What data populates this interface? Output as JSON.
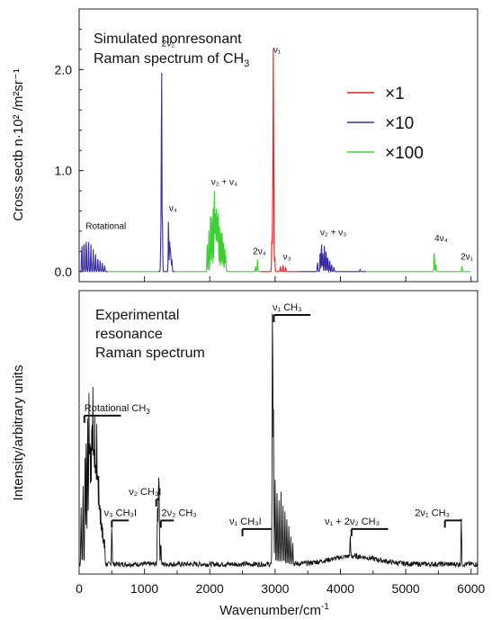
{
  "colors": {
    "x1": "#e0201e",
    "x10": "#3a2ea0",
    "x100": "#3fcf35",
    "exp": "#111111"
  },
  "x_axis": {
    "label": "Wavenumber/cm",
    "label_sup": "-1",
    "ticks": [
      "0",
      "1000",
      "2000",
      "3000",
      "4000",
      "5000",
      "6000"
    ],
    "tick_values": [
      0,
      1000,
      2000,
      3000,
      4000,
      5000,
      6000
    ],
    "range": [
      0,
      6100
    ]
  },
  "chart_data": [
    {
      "type": "line",
      "panel": "top",
      "title_lines": [
        "Simulated nonresonant",
        "Raman spectrum of CH"
      ],
      "title_sub": "3",
      "ylabel": "Cross sectb n·10² /m²sr⁻¹",
      "ylim": [
        -0.1,
        2.6
      ],
      "y_ticks": [
        "0.0",
        "1.0",
        "2.0"
      ],
      "y_tick_values": [
        0.0,
        1.0,
        2.0
      ],
      "legend": [
        {
          "label": "×1",
          "color": "#e0201e"
        },
        {
          "label": "×10",
          "color": "#3a2ea0"
        },
        {
          "label": "×100",
          "color": "#3fcf35"
        }
      ],
      "series": [
        {
          "color": "#3a2ea0",
          "range": [
            0,
            440
          ],
          "peaks": [
            [
              40,
              0.28
            ],
            [
              75,
              0.34
            ],
            [
              110,
              0.33
            ],
            [
              145,
              0.3
            ],
            [
              180,
              0.27
            ],
            [
              215,
              0.23
            ],
            [
              250,
              0.19
            ],
            [
              285,
              0.15
            ],
            [
              320,
              0.12
            ],
            [
              355,
              0.09
            ],
            [
              390,
              0.06
            ]
          ]
        },
        {
          "color": "#3fcf35",
          "range": [
            440,
            1210
          ],
          "peaks": []
        },
        {
          "color": "#3a2ea0",
          "range": [
            1210,
            1470
          ],
          "peaks": [
            [
              1262,
              2.18
            ],
            [
              1250,
              0.35
            ],
            [
              1275,
              0.45
            ],
            [
              1368,
              0.55
            ],
            [
              1385,
              0.3
            ],
            [
              1395,
              0.2
            ],
            [
              1405,
              0.15
            ],
            [
              1420,
              0.12
            ]
          ]
        },
        {
          "color": "#3fcf35",
          "range": [
            1470,
            2780
          ],
          "peaks": [
            [
              1960,
              0.3
            ],
            [
              1985,
              0.42
            ],
            [
              2010,
              0.55
            ],
            [
              2030,
              0.6
            ],
            [
              2050,
              0.7
            ],
            [
              2070,
              0.8
            ],
            [
              2085,
              0.72
            ],
            [
              2100,
              0.62
            ],
            [
              2115,
              0.68
            ],
            [
              2130,
              0.58
            ],
            [
              2150,
              0.5
            ],
            [
              2170,
              0.44
            ],
            [
              2190,
              0.38
            ],
            [
              2210,
              0.32
            ],
            [
              2230,
              0.25
            ],
            [
              2245,
              0.16
            ],
            [
              2730,
              0.12
            ],
            [
              2700,
              0.05
            ]
          ]
        },
        {
          "color": "#e0201e",
          "range": [
            2780,
            3020
          ],
          "peaks": [
            [
              2950,
              0.34
            ],
            [
              2963,
              0.55
            ],
            [
              2972,
              2.08
            ],
            [
              2980,
              0.4
            ],
            [
              2995,
              0.15
            ]
          ]
        },
        {
          "color": "#e0201e",
          "range": [
            3020,
            3340
          ],
          "peaks": [
            [
              3080,
              0.05
            ],
            [
              3120,
              0.07
            ],
            [
              3160,
              0.05
            ]
          ]
        },
        {
          "color": "#3a2ea0",
          "range": [
            3340,
            4400
          ],
          "peaks": [
            [
              3650,
              0.1
            ],
            [
              3690,
              0.2
            ],
            [
              3710,
              0.3
            ],
            [
              3730,
              0.18
            ],
            [
              3755,
              0.26
            ],
            [
              3780,
              0.22
            ],
            [
              3805,
              0.17
            ],
            [
              3835,
              0.13
            ],
            [
              3865,
              0.08
            ],
            [
              3900,
              0.05
            ],
            [
              4300,
              0.02
            ]
          ]
        },
        {
          "color": "#3fcf35",
          "range": [
            4400,
            6000
          ],
          "peaks": [
            [
              5435,
              0.22
            ],
            [
              5460,
              0.08
            ],
            [
              5860,
              0.06
            ]
          ]
        }
      ],
      "annotations": [
        {
          "text": "Rotational",
          "x": 100,
          "y": 0.42
        },
        {
          "text": "2ν₂",
          "x": 1262,
          "y": 2.23
        },
        {
          "text": "ν₄",
          "x": 1375,
          "y": 0.6
        },
        {
          "text": "ν₂ + ν₄",
          "x": 2020,
          "y": 0.86
        },
        {
          "text": "2ν₄",
          "x": 2660,
          "y": 0.17
        },
        {
          "text": "ν₃",
          "x": 3120,
          "y": 0.12
        },
        {
          "text": "ν₂ + ν₃",
          "x": 3690,
          "y": 0.36
        },
        {
          "text": "ν₁",
          "x": 2972,
          "y": 2.17
        },
        {
          "text": "4ν₄",
          "x": 5440,
          "y": 0.3
        },
        {
          "text": "2ν₁",
          "x": 5840,
          "y": 0.12
        }
      ]
    },
    {
      "type": "line",
      "panel": "bottom",
      "title_lines": [
        "Experimental",
        "resonance",
        "Raman spectrum"
      ],
      "ylabel": "Intensity/arbitrary units",
      "ylim": [
        0,
        1
      ],
      "series": [
        {
          "color": "#111111",
          "range": [
            0,
            6100
          ],
          "peaks": [
            [
              30,
              0.2
            ],
            [
              60,
              0.28
            ],
            [
              90,
              0.38
            ],
            [
              110,
              0.46
            ],
            [
              130,
              0.55
            ],
            [
              150,
              0.6
            ],
            [
              165,
              0.48
            ],
            [
              180,
              0.4
            ],
            [
              195,
              0.54
            ],
            [
              210,
              0.62
            ],
            [
              225,
              0.45
            ],
            [
              240,
              0.52
            ],
            [
              255,
              0.38
            ],
            [
              270,
              0.48
            ],
            [
              285,
              0.35
            ],
            [
              300,
              0.3
            ],
            [
              315,
              0.24
            ],
            [
              330,
              0.2
            ],
            [
              345,
              0.16
            ],
            [
              360,
              0.12
            ],
            [
              375,
              0.1
            ],
            [
              390,
              0.08
            ],
            [
              500,
              0.14
            ],
            [
              1200,
              0.2
            ],
            [
              1215,
              0.28
            ],
            [
              1225,
              0.22
            ],
            [
              1250,
              0.08
            ],
            [
              2960,
              0.95
            ],
            [
              2975,
              0.55
            ],
            [
              3000,
              0.3
            ],
            [
              3030,
              0.26
            ],
            [
              3060,
              0.22
            ],
            [
              3090,
              0.25
            ],
            [
              3120,
              0.2
            ],
            [
              3150,
              0.18
            ],
            [
              3180,
              0.16
            ],
            [
              3210,
              0.14
            ],
            [
              3240,
              0.1
            ],
            [
              3270,
              0.08
            ],
            [
              4150,
              0.07
            ],
            [
              5850,
              0.16
            ]
          ]
        }
      ],
      "annotations": [
        {
          "text": "Rotational CH",
          "sub": "3",
          "x": 80,
          "y": 0.575,
          "line": [
            80,
            640
          ]
        },
        {
          "text": "ν₃ CH₃I",
          "x": 380,
          "y": 0.205,
          "line": [
            500,
            760
          ]
        },
        {
          "text": "ν₂ CH₃I",
          "x": 760,
          "y": 0.28,
          "line": [
            1180,
            1225
          ]
        },
        {
          "text": "2ν₂ CH₃",
          "x": 1260,
          "y": 0.205,
          "line": [
            1250,
            1450
          ]
        },
        {
          "text": "ν₁ CH₃I",
          "x": 2300,
          "y": 0.175,
          "line": [
            2500,
            2950
          ]
        },
        {
          "text": "ν₁ CH₃",
          "x": 2960,
          "y": 0.93,
          "line": [
            2980,
            3540
          ]
        },
        {
          "text": "ν₁ + 2ν₂ CH₃",
          "x": 3760,
          "y": 0.175,
          "line": [
            4170,
            4730
          ]
        },
        {
          "text": "2ν₁ CH₃",
          "x": 5140,
          "y": 0.205,
          "line": [
            5600,
            5860
          ]
        }
      ]
    }
  ]
}
